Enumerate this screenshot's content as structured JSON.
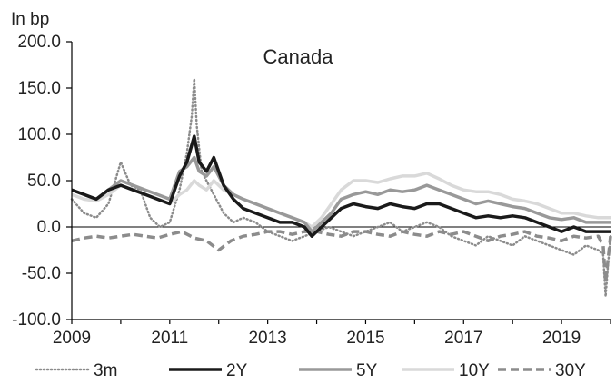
{
  "chart_data": {
    "type": "line",
    "title": "Canada",
    "ylabel": "In bp",
    "xlabel": "",
    "xlim": [
      2009,
      2020
    ],
    "ylim": [
      -100,
      200
    ],
    "yticks": [
      "200.0",
      "150.0",
      "100.0",
      "50.0",
      "0.0",
      "-50.0",
      "-100.0"
    ],
    "ytick_values": [
      200,
      150,
      100,
      50,
      0,
      -50,
      -100
    ],
    "xticks": [
      "2009",
      "2011",
      "2013",
      "2015",
      "2017",
      "2019"
    ],
    "xtick_values": [
      2009,
      2011,
      2013,
      2015,
      2017,
      2019
    ],
    "grid": false,
    "legend_position": "bottom",
    "series": [
      {
        "name": "3m",
        "style": "dotted",
        "color": "#8c8c8c",
        "x": [
          2009.0,
          2009.25,
          2009.5,
          2009.75,
          2010.0,
          2010.2,
          2010.4,
          2010.6,
          2010.8,
          2011.0,
          2011.2,
          2011.35,
          2011.45,
          2011.5,
          2011.55,
          2011.65,
          2011.8,
          2011.95,
          2012.1,
          2012.3,
          2012.5,
          2012.75,
          2013.0,
          2013.25,
          2013.5,
          2013.75,
          2014.0,
          2014.25,
          2014.5,
          2014.75,
          2015.0,
          2015.25,
          2015.5,
          2015.75,
          2016.0,
          2016.25,
          2016.5,
          2016.75,
          2017.0,
          2017.25,
          2017.5,
          2017.75,
          2018.0,
          2018.25,
          2018.5,
          2018.75,
          2019.0,
          2019.25,
          2019.5,
          2019.75,
          2019.85,
          2019.9,
          2019.95,
          2020.0
        ],
        "y": [
          30,
          15,
          10,
          25,
          70,
          45,
          40,
          10,
          0,
          5,
          40,
          80,
          120,
          160,
          110,
          60,
          45,
          30,
          15,
          5,
          10,
          5,
          -5,
          -10,
          -15,
          -10,
          -5,
          0,
          -5,
          -10,
          -5,
          0,
          5,
          -5,
          0,
          5,
          0,
          -10,
          -15,
          -20,
          -10,
          -15,
          -20,
          -10,
          -15,
          -20,
          -25,
          -30,
          -20,
          -25,
          -30,
          -75,
          -40,
          -10
        ]
      },
      {
        "name": "2Y",
        "style": "solid-thick",
        "color": "#1a1a1a",
        "x": [
          2009.0,
          2009.25,
          2009.5,
          2009.75,
          2010.0,
          2010.25,
          2010.5,
          2010.75,
          2011.0,
          2011.2,
          2011.35,
          2011.5,
          2011.6,
          2011.75,
          2011.9,
          2012.1,
          2012.3,
          2012.5,
          2012.75,
          2013.0,
          2013.25,
          2013.5,
          2013.75,
          2013.9,
          2014.1,
          2014.3,
          2014.5,
          2014.75,
          2015.0,
          2015.25,
          2015.5,
          2015.75,
          2016.0,
          2016.25,
          2016.5,
          2016.75,
          2017.0,
          2017.25,
          2017.5,
          2017.75,
          2018.0,
          2018.25,
          2018.5,
          2018.75,
          2019.0,
          2019.25,
          2019.5,
          2019.75,
          2020.0
        ],
        "y": [
          40,
          35,
          30,
          40,
          45,
          40,
          35,
          30,
          25,
          55,
          70,
          98,
          70,
          60,
          75,
          45,
          30,
          20,
          15,
          10,
          5,
          5,
          0,
          -10,
          0,
          10,
          20,
          25,
          22,
          20,
          25,
          22,
          20,
          25,
          25,
          20,
          15,
          10,
          12,
          10,
          12,
          10,
          5,
          0,
          -5,
          0,
          -5,
          -5,
          -5
        ]
      },
      {
        "name": "5Y",
        "style": "solid",
        "color": "#999999",
        "x": [
          2009.0,
          2009.25,
          2009.5,
          2009.75,
          2010.0,
          2010.25,
          2010.5,
          2010.75,
          2011.0,
          2011.2,
          2011.35,
          2011.5,
          2011.6,
          2011.75,
          2011.9,
          2012.1,
          2012.3,
          2012.5,
          2012.75,
          2013.0,
          2013.25,
          2013.5,
          2013.75,
          2013.9,
          2014.1,
          2014.3,
          2014.5,
          2014.75,
          2015.0,
          2015.25,
          2015.5,
          2015.75,
          2016.0,
          2016.25,
          2016.5,
          2016.75,
          2017.0,
          2017.25,
          2017.5,
          2017.75,
          2018.0,
          2018.25,
          2018.5,
          2018.75,
          2019.0,
          2019.25,
          2019.5,
          2019.75,
          2020.0
        ],
        "y": [
          40,
          35,
          30,
          40,
          50,
          45,
          40,
          35,
          30,
          60,
          65,
          75,
          60,
          55,
          65,
          45,
          35,
          30,
          25,
          20,
          15,
          10,
          5,
          -5,
          5,
          15,
          30,
          35,
          38,
          35,
          40,
          38,
          40,
          45,
          40,
          35,
          30,
          25,
          28,
          25,
          22,
          20,
          15,
          10,
          8,
          10,
          5,
          5,
          5
        ]
      },
      {
        "name": "10Y",
        "style": "solid-light",
        "color": "#d9d9d9",
        "x": [
          2009.0,
          2009.25,
          2009.5,
          2009.75,
          2010.0,
          2010.25,
          2010.5,
          2010.75,
          2011.0,
          2011.2,
          2011.35,
          2011.5,
          2011.6,
          2011.75,
          2011.9,
          2012.1,
          2012.3,
          2012.5,
          2012.75,
          2013.0,
          2013.25,
          2013.5,
          2013.75,
          2013.9,
          2014.1,
          2014.3,
          2014.5,
          2014.75,
          2015.0,
          2015.25,
          2015.5,
          2015.75,
          2016.0,
          2016.25,
          2016.5,
          2016.75,
          2017.0,
          2017.25,
          2017.5,
          2017.75,
          2018.0,
          2018.25,
          2018.5,
          2018.75,
          2019.0,
          2019.25,
          2019.5,
          2019.75,
          2020.0
        ],
        "y": [
          35,
          30,
          28,
          35,
          45,
          40,
          35,
          30,
          25,
          35,
          40,
          50,
          45,
          40,
          50,
          40,
          35,
          30,
          25,
          20,
          15,
          10,
          5,
          0,
          10,
          25,
          40,
          50,
          50,
          48,
          52,
          55,
          55,
          58,
          52,
          45,
          40,
          38,
          38,
          35,
          30,
          28,
          25,
          20,
          15,
          15,
          12,
          10,
          10
        ]
      },
      {
        "name": "30Y",
        "style": "dashed",
        "color": "#8c8c8c",
        "x": [
          2009.0,
          2009.25,
          2009.5,
          2009.75,
          2010.0,
          2010.25,
          2010.5,
          2010.75,
          2011.0,
          2011.25,
          2011.5,
          2011.75,
          2012.0,
          2012.25,
          2012.5,
          2012.75,
          2013.0,
          2013.25,
          2013.5,
          2013.75,
          2014.0,
          2014.25,
          2014.5,
          2014.75,
          2015.0,
          2015.25,
          2015.5,
          2015.75,
          2016.0,
          2016.25,
          2016.5,
          2016.75,
          2017.0,
          2017.25,
          2017.5,
          2017.75,
          2018.0,
          2018.25,
          2018.5,
          2018.75,
          2019.0,
          2019.25,
          2019.5,
          2019.75,
          2019.85,
          2019.9,
          2020.0
        ],
        "y": [
          -15,
          -12,
          -10,
          -12,
          -10,
          -8,
          -10,
          -12,
          -8,
          -5,
          -12,
          -15,
          -25,
          -15,
          -10,
          -8,
          -5,
          -5,
          -8,
          -5,
          -5,
          -8,
          -10,
          -5,
          -5,
          -8,
          -10,
          -5,
          -8,
          -10,
          -5,
          -8,
          -5,
          -10,
          -15,
          -10,
          -8,
          -5,
          -10,
          -12,
          -15,
          -10,
          -12,
          -10,
          -20,
          -60,
          -10
        ]
      }
    ]
  }
}
